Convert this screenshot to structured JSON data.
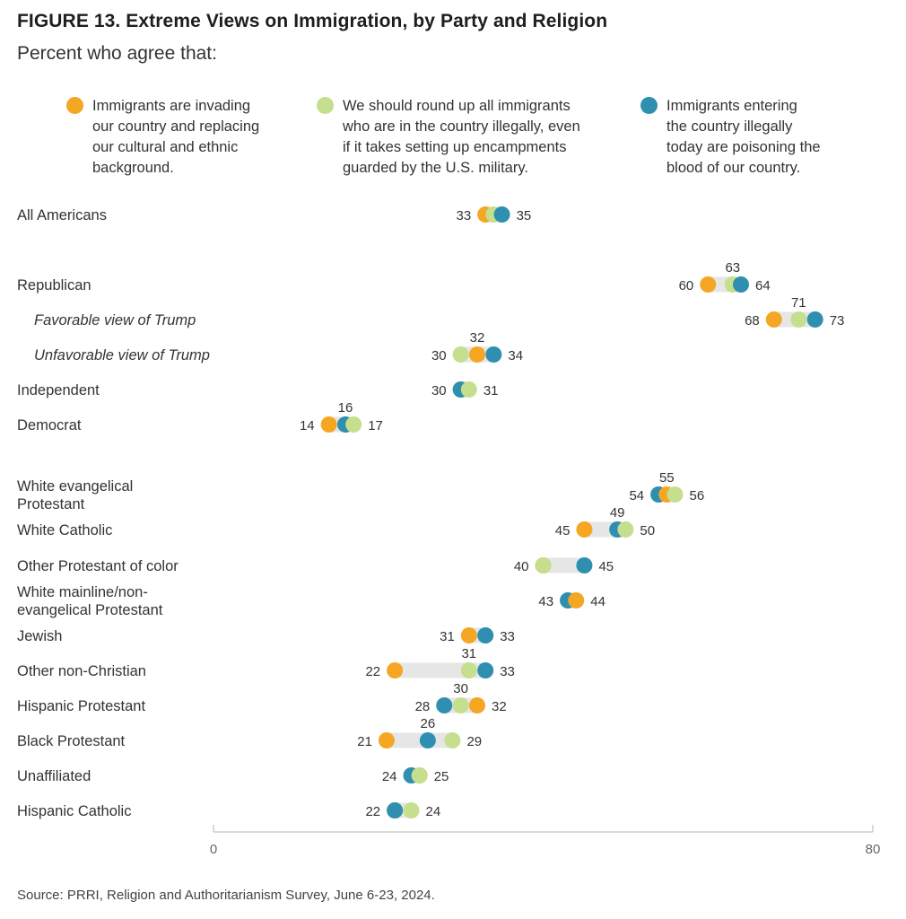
{
  "figure_title": "FIGURE 13.  Extreme Views on Immigration, by Party and Religion",
  "subtitle": "Percent who agree that:",
  "source": "Source: PRRI, Religion and Authoritarianism Survey, June 6-23, 2024.",
  "colors": {
    "orange": "#f5a623",
    "lightgreen": "#c5df8f",
    "teal": "#2f8fb0",
    "bar": "#e6e6e6",
    "axis": "#cfcfcf"
  },
  "chart_data": {
    "type": "dot",
    "xlim": [
      0,
      80
    ],
    "ticks": [
      0,
      80
    ],
    "grid": false,
    "legend_placement": "top",
    "series": [
      {
        "key": "invading",
        "name": "Immigrants are invading\nour country and replacing\nour cultural and ethnic\nbackground.",
        "color": "#f5a623"
      },
      {
        "key": "roundup",
        "name": "We should round up all immigrants\nwho are in the country illegally, even\nif it takes setting up encampments\nguarded by the U.S. military.",
        "color": "#c5df8f"
      },
      {
        "key": "poisoning",
        "name": "Immigrants entering\nthe country illegally\ntoday are poisoning the\nblood of our country.",
        "color": "#2f8fb0"
      }
    ],
    "rows": [
      {
        "label": "All Americans",
        "italic": false,
        "values": {
          "invading": 33,
          "roundup": 34,
          "poisoning": 35
        },
        "labels": {
          "left": "33",
          "right": "35",
          "above": ""
        }
      },
      {
        "label": "Republican",
        "italic": false,
        "values": {
          "invading": 60,
          "roundup": 63,
          "poisoning": 64
        },
        "labels": {
          "left": "60",
          "right": "64",
          "above": "63"
        }
      },
      {
        "label": "Favorable view of Trump",
        "italic": true,
        "values": {
          "invading": 68,
          "roundup": 71,
          "poisoning": 73
        },
        "labels": {
          "left": "68",
          "right": "73",
          "above": "71"
        }
      },
      {
        "label": "Unfavorable view of Trump",
        "italic": true,
        "values": {
          "invading": 32,
          "roundup": 30,
          "poisoning": 34
        },
        "labels": {
          "left": "30",
          "right": "34",
          "above": "32"
        }
      },
      {
        "label": "Independent",
        "italic": false,
        "values": {
          "invading": 30,
          "roundup": 31,
          "poisoning": 30
        },
        "labels": {
          "left": "30",
          "right": "31",
          "above": ""
        }
      },
      {
        "label": "Democrat",
        "italic": false,
        "values": {
          "invading": 14,
          "roundup": 17,
          "poisoning": 16
        },
        "labels": {
          "left": "14",
          "right": "17",
          "above": "16"
        }
      },
      {
        "label": "White evangelical\nProtestant",
        "italic": false,
        "values": {
          "invading": 55,
          "roundup": 56,
          "poisoning": 54
        },
        "labels": {
          "left": "54",
          "right": "56",
          "above": "55"
        }
      },
      {
        "label": "White Catholic",
        "italic": false,
        "values": {
          "invading": 45,
          "roundup": 50,
          "poisoning": 49
        },
        "labels": {
          "left": "45",
          "right": "50",
          "above": "49"
        }
      },
      {
        "label": "Other Protestant of color",
        "italic": false,
        "values": {
          "invading": 40,
          "roundup": 40,
          "poisoning": 45
        },
        "labels": {
          "left": "40",
          "right": "45",
          "above": ""
        }
      },
      {
        "label": "White mainline/non-\nevangelical Protestant",
        "italic": false,
        "values": {
          "invading": 44,
          "roundup": 43,
          "poisoning": 43
        },
        "labels": {
          "left": "43",
          "right": "44",
          "above": ""
        }
      },
      {
        "label": "Jewish",
        "italic": false,
        "values": {
          "invading": 31,
          "roundup": 33,
          "poisoning": 33
        },
        "labels": {
          "left": "31",
          "right": "33",
          "above": ""
        }
      },
      {
        "label": "Other non-Christian",
        "italic": false,
        "values": {
          "invading": 22,
          "roundup": 31,
          "poisoning": 33
        },
        "labels": {
          "left": "22",
          "right": "33",
          "above": "31"
        }
      },
      {
        "label": "Hispanic Protestant",
        "italic": false,
        "values": {
          "invading": 32,
          "roundup": 30,
          "poisoning": 28
        },
        "labels": {
          "left": "28",
          "right": "32",
          "above": "30"
        }
      },
      {
        "label": "Black Protestant",
        "italic": false,
        "values": {
          "invading": 21,
          "roundup": 29,
          "poisoning": 26
        },
        "labels": {
          "left": "21",
          "right": "29",
          "above": "26"
        }
      },
      {
        "label": "Unaffiliated",
        "italic": false,
        "values": {
          "invading": 25,
          "roundup": 25,
          "poisoning": 24
        },
        "labels": {
          "left": "24",
          "right": "25",
          "above": ""
        }
      },
      {
        "label": "Hispanic Catholic",
        "italic": false,
        "values": {
          "invading": 22,
          "roundup": 24,
          "poisoning": 22
        },
        "labels": {
          "left": "22",
          "right": "24",
          "above": ""
        }
      }
    ]
  }
}
